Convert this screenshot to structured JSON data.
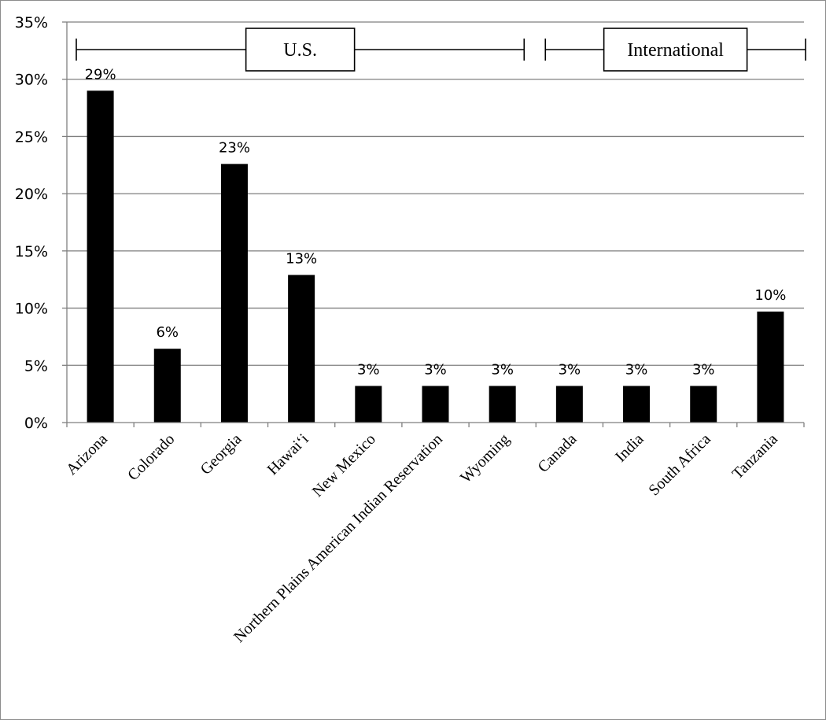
{
  "chart_data": {
    "type": "bar",
    "categories": [
      "Arizona",
      "Colorado",
      "Georgia",
      "Hawai‘i",
      "New Mexico",
      "Northern Plains American Indian Reservation",
      "Wyoming",
      "Canada",
      "India",
      "South Africa",
      "Tanzania"
    ],
    "values": [
      29.0,
      6.45,
      22.6,
      12.9,
      3.2,
      3.2,
      3.2,
      3.2,
      3.2,
      3.2,
      9.7
    ],
    "data_labels": [
      "29%",
      "6%",
      "23%",
      "13%",
      "3%",
      "3%",
      "3%",
      "3%",
      "3%",
      "3%",
      "10%"
    ],
    "ylim": [
      0,
      35
    ],
    "yticks": [
      0,
      5,
      10,
      15,
      20,
      25,
      30,
      35
    ],
    "ytick_labels": [
      "0%",
      "5%",
      "10%",
      "15%",
      "20%",
      "25%",
      "30%",
      "35%"
    ],
    "title": "",
    "xlabel": "",
    "ylabel": "",
    "grid": true,
    "bar_color": "#000000",
    "groups": [
      {
        "label": "U.S.",
        "categories": [
          "Arizona",
          "Colorado",
          "Georgia",
          "Hawai‘i",
          "New Mexico",
          "Northern Plains American Indian Reservation",
          "Wyoming"
        ]
      },
      {
        "label": "International",
        "categories": [
          "Canada",
          "India",
          "South Africa",
          "Tanzania"
        ]
      }
    ]
  }
}
